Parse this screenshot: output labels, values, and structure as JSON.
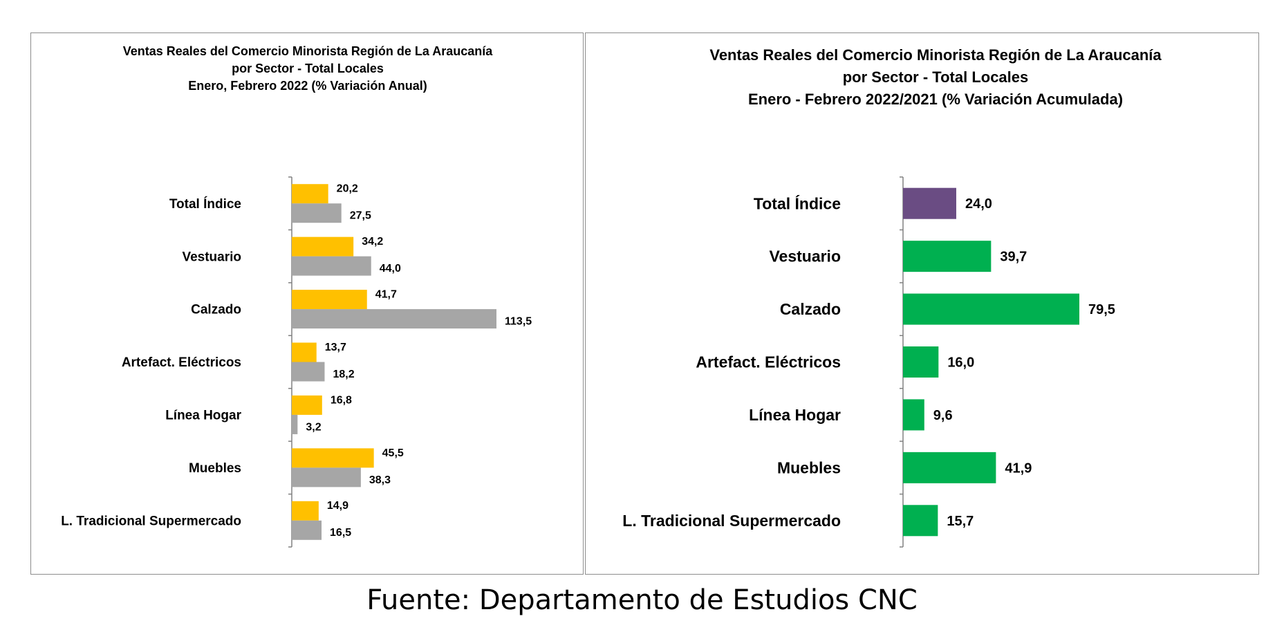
{
  "chart_data": [
    {
      "type": "bar",
      "orientation": "horizontal",
      "title_lines": [
        "Ventas Reales del Comercio Minorista  Región de La Araucanía",
        "por Sector  - Total Locales",
        "Enero, Febrero 2022 (% Variación Anual)"
      ],
      "categories": [
        "Total Índice",
        "Vestuario",
        "Calzado",
        "Artefact. Eléctricos",
        "Línea Hogar",
        "Muebles",
        "L. Tradicional Supermercado"
      ],
      "series": [
        {
          "color": "#FFC000",
          "values": [
            20.2,
            34.2,
            41.7,
            13.7,
            16.8,
            45.5,
            14.9
          ],
          "labels": [
            "20,2",
            "34,2",
            "41,7",
            "13,7",
            "16,8",
            "45,5",
            "14,9"
          ]
        },
        {
          "color": "#A6A6A6",
          "values": [
            27.5,
            44.0,
            113.5,
            18.2,
            3.2,
            38.3,
            16.5
          ],
          "labels": [
            "27,5",
            "44,0",
            "113,5",
            "18,2",
            "3,2",
            "38,3",
            "16,5"
          ]
        }
      ],
      "xlim": [
        0,
        113.5
      ],
      "legend": "none",
      "grid": false
    },
    {
      "type": "bar",
      "orientation": "horizontal",
      "title_lines": [
        "Ventas Reales del Comercio Minorista Región de La Araucanía",
        "por Sector - Total Locales",
        "Enero - Febrero 2022/2021 (% Variación Acumulada)"
      ],
      "categories": [
        "Total Índice",
        "Vestuario",
        "Calzado",
        "Artefact. Eléctricos",
        "Línea Hogar",
        "Muebles",
        "L. Tradicional Supermercado"
      ],
      "values": [
        24.0,
        39.7,
        79.5,
        16.0,
        9.6,
        41.9,
        15.7
      ],
      "labels": [
        "24,0",
        "39,7",
        "79,5",
        "16,0",
        "9,6",
        "41,9",
        "15,7"
      ],
      "bar_colors": [
        "#6A4C83",
        "#00B050",
        "#00B050",
        "#00B050",
        "#00B050",
        "#00B050",
        "#00B050"
      ],
      "xlim": [
        0,
        79.5
      ],
      "legend": "none",
      "grid": false
    }
  ],
  "source": "Fuente: Departamento de Estudios CNC"
}
